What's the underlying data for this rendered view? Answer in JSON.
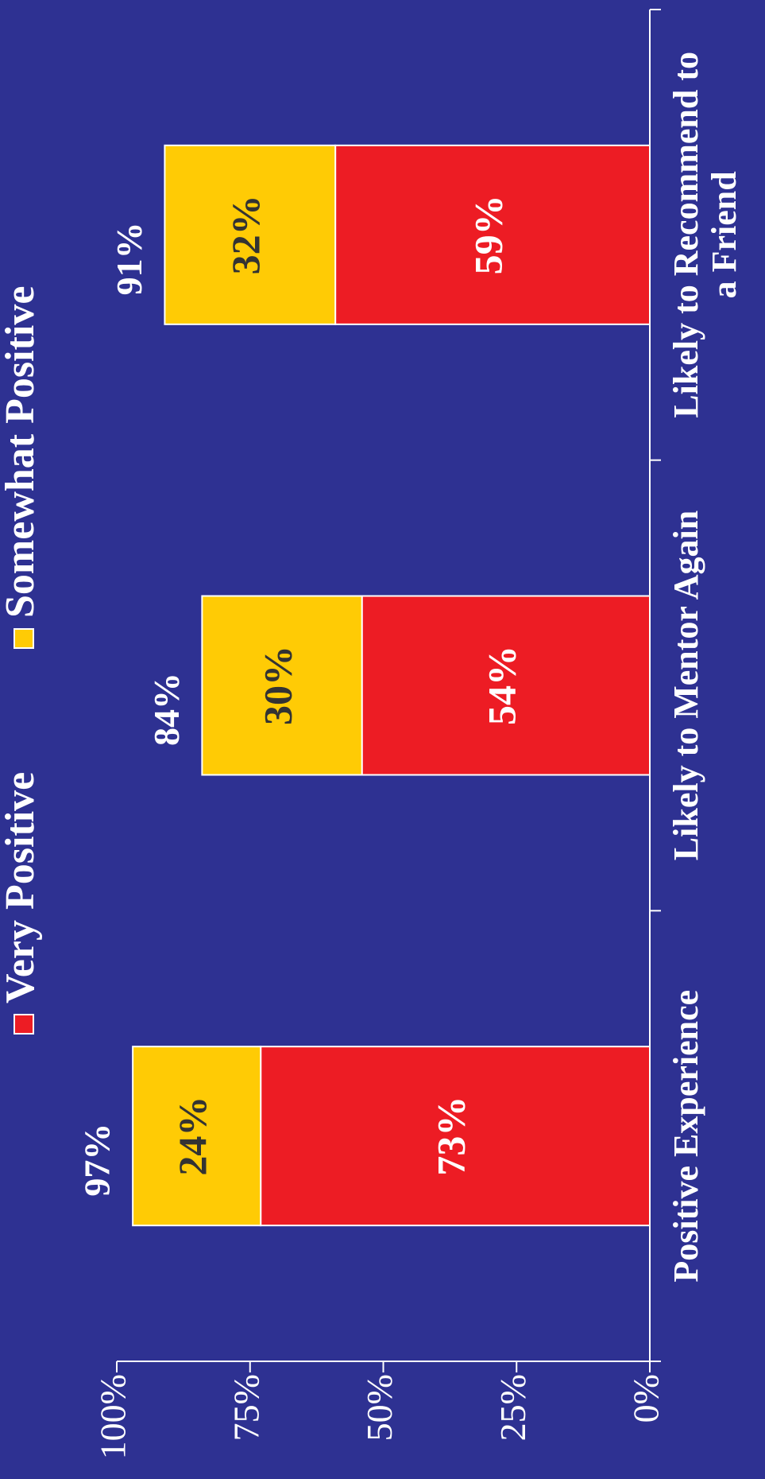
{
  "colors": {
    "background": "#2e3192",
    "very_positive": "#ed1c24",
    "somewhat_positive": "#ffcb05",
    "axis": "#ffffff",
    "dark_label": "#333333",
    "light_label": "#ffffff"
  },
  "chart_data": {
    "type": "bar",
    "stacked": true,
    "orientation": "vertical (image rotated 90 degrees counter-clockwise)",
    "categories": [
      "Positive Experience",
      "Likely to Mentor Again",
      "Likely to Recommend to a Friend"
    ],
    "category_label_lines": [
      [
        "Positive Experience"
      ],
      [
        "Likely to Mentor Again"
      ],
      [
        "Likely to Recommend to",
        "a Friend"
      ]
    ],
    "series": [
      {
        "name": "Very Positive",
        "values": [
          73,
          54,
          59
        ],
        "labels": [
          "73%",
          "54%",
          "59%"
        ]
      },
      {
        "name": "Somewhat Positive",
        "values": [
          24,
          30,
          32
        ],
        "labels": [
          "24%",
          "30%",
          "32%"
        ]
      }
    ],
    "totals": [
      97,
      84,
      91
    ],
    "total_labels": [
      "97%",
      "84%",
      "91%"
    ],
    "ylim": [
      0,
      100
    ],
    "yticks": [
      0,
      25,
      50,
      75,
      100
    ],
    "ytick_labels": [
      "0%",
      "25%",
      "50%",
      "75%",
      "100%"
    ],
    "legend_position": "top",
    "grid": false
  }
}
